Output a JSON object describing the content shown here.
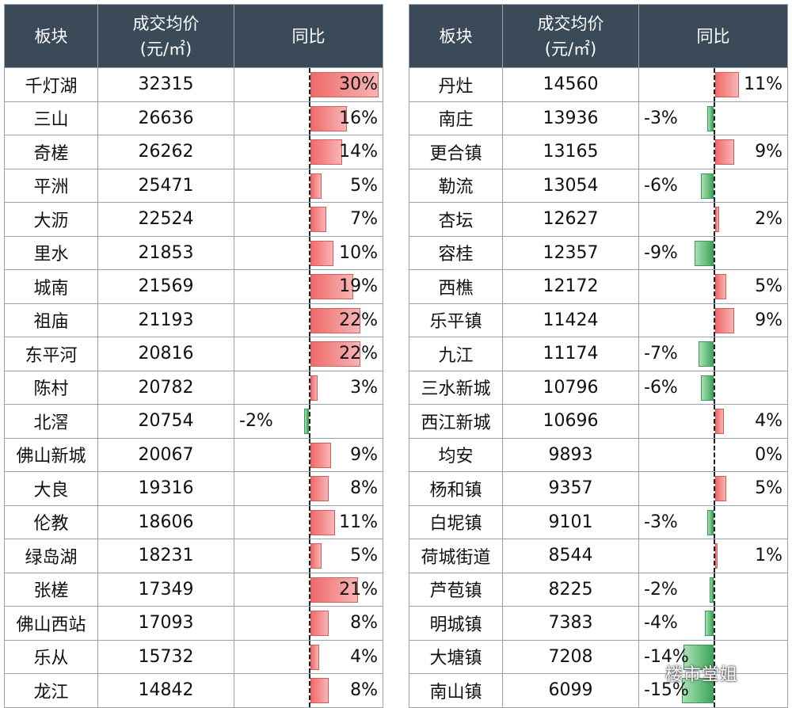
{
  "header": {
    "col_block": "板块",
    "col_price_line1": "成交均价",
    "col_price_line2": "(元/㎡)",
    "col_yoy": "同比"
  },
  "colors": {
    "header_bg": "#3b4a59",
    "positive": "#f06a6a",
    "negative": "#3da55a"
  },
  "watermark": "楼市堂姐",
  "chart_data": [
    {
      "type": "table",
      "columns": [
        "板块",
        "成交均价(元/㎡)",
        "同比"
      ],
      "rows": [
        {
          "name": "千灯湖",
          "price": 32315,
          "yoy": 30,
          "yoy_label": "30%"
        },
        {
          "name": "三山",
          "price": 26636,
          "yoy": 16,
          "yoy_label": "16%"
        },
        {
          "name": "奇槎",
          "price": 26262,
          "yoy": 14,
          "yoy_label": "14%"
        },
        {
          "name": "平洲",
          "price": 25471,
          "yoy": 5,
          "yoy_label": "5%"
        },
        {
          "name": "大沥",
          "price": 22524,
          "yoy": 7,
          "yoy_label": "7%"
        },
        {
          "name": "里水",
          "price": 21853,
          "yoy": 10,
          "yoy_label": "10%"
        },
        {
          "name": "城南",
          "price": 21569,
          "yoy": 19,
          "yoy_label": "19%"
        },
        {
          "name": "祖庙",
          "price": 21193,
          "yoy": 22,
          "yoy_label": "22%"
        },
        {
          "name": "东平河",
          "price": 20816,
          "yoy": 22,
          "yoy_label": "22%"
        },
        {
          "name": "陈村",
          "price": 20782,
          "yoy": 3,
          "yoy_label": "3%"
        },
        {
          "name": "北滘",
          "price": 20754,
          "yoy": -2,
          "yoy_label": "-2%"
        },
        {
          "name": "佛山新城",
          "price": 20067,
          "yoy": 9,
          "yoy_label": "9%"
        },
        {
          "name": "大良",
          "price": 19316,
          "yoy": 8,
          "yoy_label": "8%"
        },
        {
          "name": "伦教",
          "price": 18606,
          "yoy": 11,
          "yoy_label": "11%"
        },
        {
          "name": "绿岛湖",
          "price": 18231,
          "yoy": 5,
          "yoy_label": "5%"
        },
        {
          "name": "张槎",
          "price": 17349,
          "yoy": 21,
          "yoy_label": "21%"
        },
        {
          "name": "佛山西站",
          "price": 17093,
          "yoy": 8,
          "yoy_label": "8%"
        },
        {
          "name": "乐从",
          "price": 15732,
          "yoy": 4,
          "yoy_label": "4%"
        },
        {
          "name": "龙江",
          "price": 14842,
          "yoy": 8,
          "yoy_label": "8%"
        }
      ]
    },
    {
      "type": "table",
      "columns": [
        "板块",
        "成交均价(元/㎡)",
        "同比"
      ],
      "rows": [
        {
          "name": "丹灶",
          "price": 14560,
          "yoy": 11,
          "yoy_label": "11%"
        },
        {
          "name": "南庄",
          "price": 13936,
          "yoy": -3,
          "yoy_label": "-3%"
        },
        {
          "name": "更合镇",
          "price": 13165,
          "yoy": 9,
          "yoy_label": "9%"
        },
        {
          "name": "勒流",
          "price": 13054,
          "yoy": -6,
          "yoy_label": "-6%"
        },
        {
          "name": "杏坛",
          "price": 12627,
          "yoy": 2,
          "yoy_label": "2%"
        },
        {
          "name": "容桂",
          "price": 12357,
          "yoy": -9,
          "yoy_label": "-9%"
        },
        {
          "name": "西樵",
          "price": 12172,
          "yoy": 5,
          "yoy_label": "5%"
        },
        {
          "name": "乐平镇",
          "price": 11424,
          "yoy": 9,
          "yoy_label": "9%"
        },
        {
          "name": "九江",
          "price": 11174,
          "yoy": -7,
          "yoy_label": "-7%"
        },
        {
          "name": "三水新城",
          "price": 10796,
          "yoy": -6,
          "yoy_label": "-6%"
        },
        {
          "name": "西江新城",
          "price": 10696,
          "yoy": 4,
          "yoy_label": "4%"
        },
        {
          "name": "均安",
          "price": 9893,
          "yoy": 0,
          "yoy_label": "0%"
        },
        {
          "name": "杨和镇",
          "price": 9357,
          "yoy": 5,
          "yoy_label": "5%"
        },
        {
          "name": "白坭镇",
          "price": 9101,
          "yoy": -3,
          "yoy_label": "-3%"
        },
        {
          "name": "荷城街道",
          "price": 8544,
          "yoy": 1,
          "yoy_label": "1%"
        },
        {
          "name": "芦苞镇",
          "price": 8225,
          "yoy": -2,
          "yoy_label": "-2%"
        },
        {
          "name": "明城镇",
          "price": 7383,
          "yoy": -4,
          "yoy_label": "-4%"
        },
        {
          "name": "大塘镇",
          "price": 7208,
          "yoy": -14,
          "yoy_label": "-14%"
        },
        {
          "name": "南山镇",
          "price": 6099,
          "yoy": -15,
          "yoy_label": "-15%"
        }
      ]
    }
  ]
}
